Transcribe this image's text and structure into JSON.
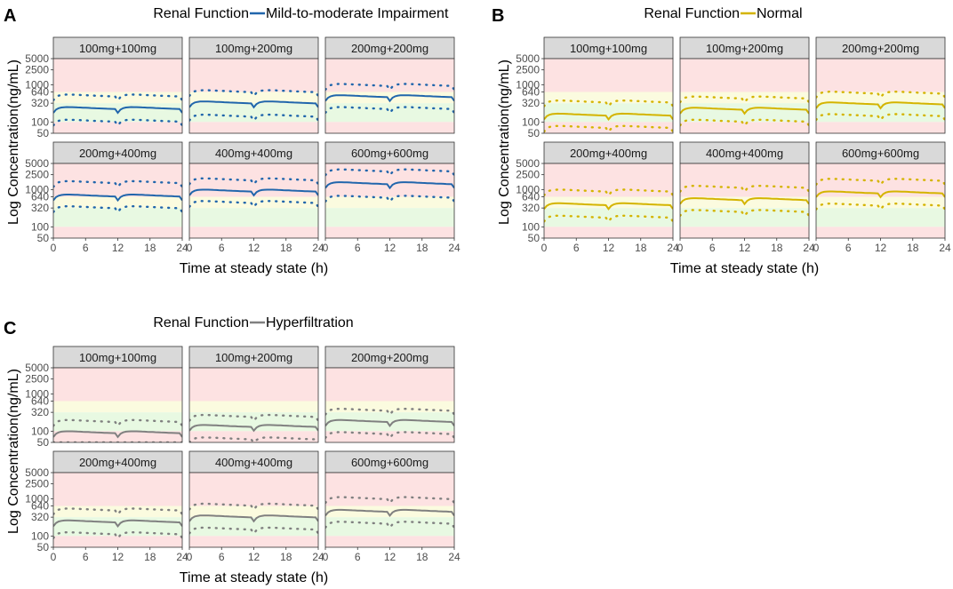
{
  "figure": {
    "y_axis_label": "Log Concentration(ng/mL)",
    "x_axis_label": "Time at steady state (h)",
    "x_ticks": [
      0,
      6,
      12,
      18,
      24
    ],
    "y_ticks": [
      50,
      100,
      320,
      640,
      1000,
      2500,
      5000
    ],
    "y_tick_labels": [
      "50",
      "100",
      "320",
      "640",
      "1000",
      "2500",
      "5000"
    ],
    "facet_labels": [
      "100mg+100mg",
      "100mg+200mg",
      "200mg+200mg",
      "200mg+400mg",
      "400mg+400mg",
      "600mg+600mg"
    ],
    "band_colors": {
      "toxic": "#fde2e2",
      "upper": "#fbfbdf",
      "therapeutic": "#e8f9e2",
      "low": "#fde2e2"
    },
    "bands": [
      {
        "name": "toxic",
        "from": 640,
        "to": 5000
      },
      {
        "name": "upper",
        "from": 320,
        "to": 640
      },
      {
        "name": "therapeutic",
        "from": 100,
        "to": 320
      },
      {
        "name": "low",
        "from": 50,
        "to": 100
      }
    ]
  },
  "chart_data": [
    {
      "panel": "A",
      "type": "line",
      "legend_title": "Renal Function",
      "legend_label": "Mild-to-moderate Impairment",
      "color": "#2166ac",
      "xlabel": "Time at steady state (h)",
      "ylabel": "Log Concentration(ng/mL)",
      "xlim": [
        0,
        24
      ],
      "ylim": [
        50,
        5000
      ],
      "y_scale": "log",
      "facets": [
        {
          "label": "100mg+100mg",
          "median": 240,
          "upper": 520,
          "lower": 110
        },
        {
          "label": "100mg+200mg",
          "median": 340,
          "upper": 680,
          "lower": 150
        },
        {
          "label": "200mg+200mg",
          "median": 500,
          "upper": 1000,
          "lower": 240
        },
        {
          "label": "200mg+400mg",
          "median": 700,
          "upper": 1600,
          "lower": 340
        },
        {
          "label": "400mg+400mg",
          "median": 950,
          "upper": 1900,
          "lower": 470
        },
        {
          "label": "600mg+600mg",
          "median": 1500,
          "upper": 3300,
          "lower": 650
        }
      ]
    },
    {
      "panel": "B",
      "type": "line",
      "legend_title": "Renal Function",
      "legend_label": "Normal",
      "color": "#d4b400",
      "xlabel": "Time at steady state (h)",
      "ylabel": "Log Concentration(ng/mL)",
      "xlim": [
        0,
        24
      ],
      "ylim": [
        50,
        5000
      ],
      "y_scale": "log",
      "facets": [
        {
          "label": "100mg+100mg",
          "median": 160,
          "upper": 360,
          "lower": 75
        },
        {
          "label": "100mg+200mg",
          "median": 230,
          "upper": 460,
          "lower": 110
        },
        {
          "label": "200mg+200mg",
          "median": 320,
          "upper": 620,
          "lower": 155
        },
        {
          "label": "200mg+400mg",
          "median": 410,
          "upper": 950,
          "lower": 190
        },
        {
          "label": "400mg+400mg",
          "median": 560,
          "upper": 1200,
          "lower": 270
        },
        {
          "label": "600mg+600mg",
          "median": 850,
          "upper": 1850,
          "lower": 400
        }
      ]
    },
    {
      "panel": "C",
      "type": "line",
      "legend_title": "Renal Function",
      "legend_label": "Hyperfiltration",
      "color": "#808080",
      "xlabel": "Time at steady state (h)",
      "ylabel": "Log Concentration(ng/mL)",
      "xlim": [
        0,
        24
      ],
      "ylim": [
        50,
        5000
      ],
      "y_scale": "log",
      "facets": [
        {
          "label": "100mg+100mg",
          "median": 95,
          "upper": 190,
          "lower": 45
        },
        {
          "label": "100mg+200mg",
          "median": 140,
          "upper": 260,
          "lower": 65
        },
        {
          "label": "200mg+200mg",
          "median": 190,
          "upper": 380,
          "lower": 90
        },
        {
          "label": "200mg+400mg",
          "median": 250,
          "upper": 520,
          "lower": 120
        },
        {
          "label": "400mg+400mg",
          "median": 340,
          "upper": 700,
          "lower": 160
        },
        {
          "label": "600mg+600mg",
          "median": 480,
          "upper": 1050,
          "lower": 230
        }
      ]
    }
  ]
}
